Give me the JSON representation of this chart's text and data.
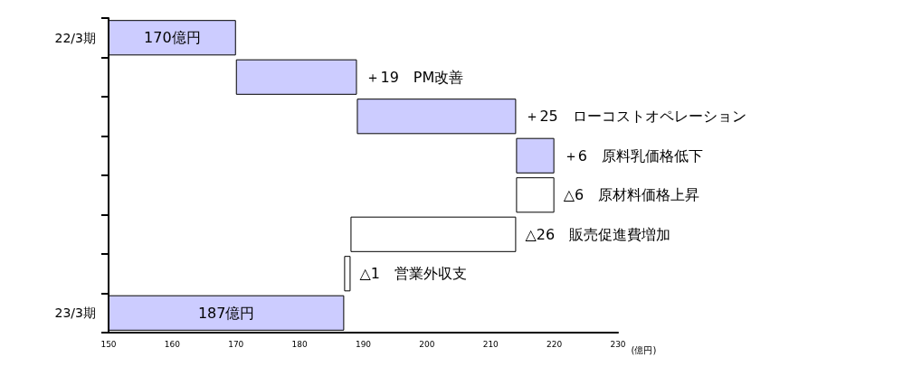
{
  "chart_data": {
    "type": "bar",
    "orientation": "horizontal",
    "xlabel": "(億円)",
    "categories": [
      "22/3期",
      null,
      null,
      null,
      null,
      null,
      null,
      "23/3期"
    ],
    "base": [
      150,
      170,
      189,
      214,
      214,
      188,
      187,
      150
    ],
    "values": [
      20,
      19,
      25,
      6,
      6,
      26,
      1,
      37
    ],
    "colors": [
      "#ccccff",
      "#ccccff",
      "#ccccff",
      "#ccccff",
      "#ffffff",
      "#ffffff",
      "#ffffff",
      "#ccccff"
    ],
    "value_labels": [
      "170億円",
      "＋19　PM改善",
      "＋25　ローコストオペレーション",
      "＋6　原料乳価格低下",
      "△6　原材料価格上昇",
      "△26　販売促進費増加",
      "△1　営業外収支",
      "187億円"
    ],
    "xlim": [
      150,
      230
    ],
    "xticks": [
      150,
      160,
      170,
      180,
      190,
      200,
      210,
      220,
      230
    ]
  }
}
